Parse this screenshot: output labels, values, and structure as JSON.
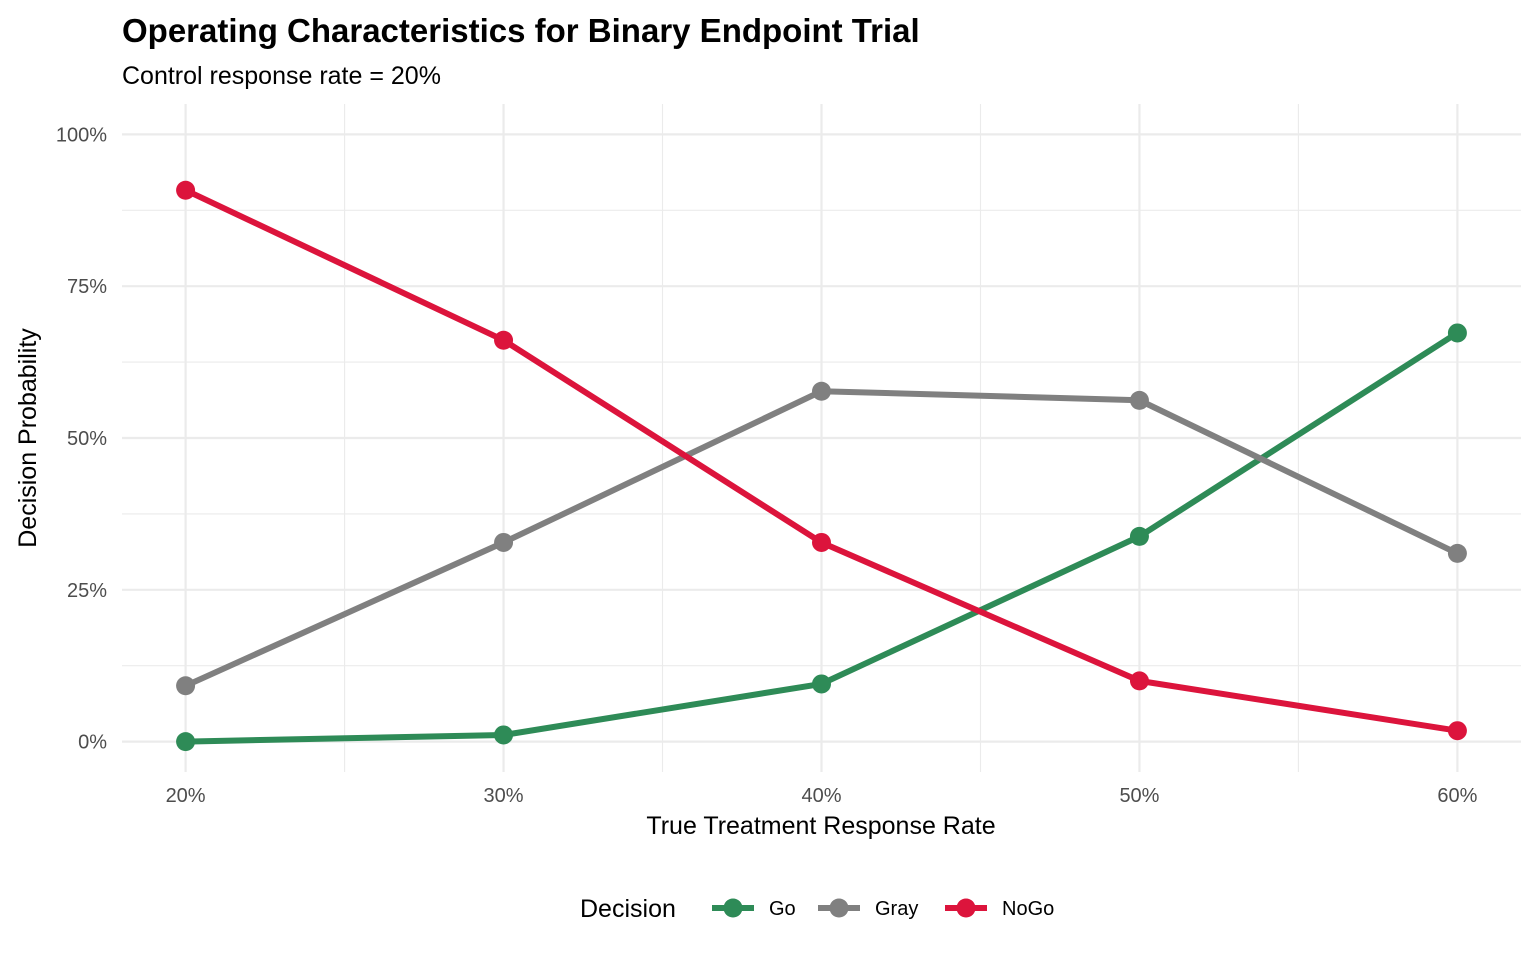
{
  "chart_data": {
    "type": "line",
    "title": "Operating Characteristics for Binary Endpoint Trial",
    "subtitle": "Control response rate = 20%",
    "xlabel": "True Treatment Response Rate",
    "ylabel": "Decision Probability",
    "x": [
      0.2,
      0.3,
      0.4,
      0.5,
      0.6
    ],
    "x_tick_labels": [
      "20%",
      "30%",
      "40%",
      "50%",
      "60%"
    ],
    "y_ticks": [
      0,
      0.25,
      0.5,
      0.75,
      1.0
    ],
    "y_tick_labels": [
      "0%",
      "25%",
      "50%",
      "75%",
      "100%"
    ],
    "xlim": [
      0.18,
      0.62
    ],
    "ylim": [
      -0.05,
      1.05
    ],
    "grid": true,
    "legend": {
      "title": "Decision",
      "position": "bottom"
    },
    "series": [
      {
        "name": "Go",
        "color": "#2e8b57",
        "values": [
          0.0,
          0.011,
          0.095,
          0.338,
          0.673
        ]
      },
      {
        "name": "Gray",
        "color": "#808080",
        "values": [
          0.092,
          0.328,
          0.577,
          0.562,
          0.31
        ]
      },
      {
        "name": "NoGo",
        "color": "#dc143c",
        "values": [
          0.908,
          0.661,
          0.328,
          0.1,
          0.018
        ]
      }
    ]
  }
}
